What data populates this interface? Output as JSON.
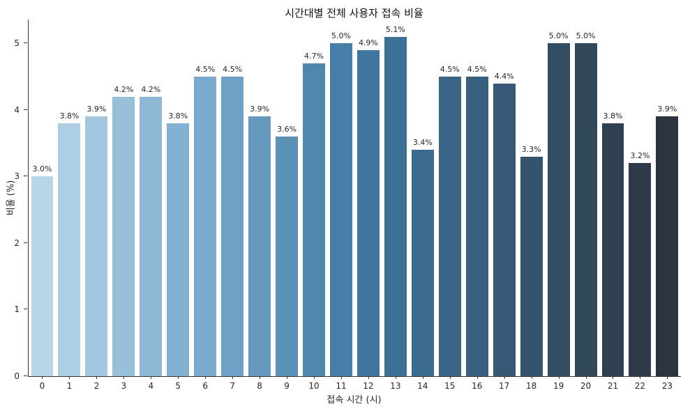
{
  "chart_data": {
    "type": "bar",
    "title": "시간대별 전체 사용자 접속 비율",
    "xlabel": "접속 시간 (시)",
    "ylabel": "비율 (%)",
    "categories": [
      "0",
      "1",
      "2",
      "3",
      "4",
      "5",
      "6",
      "7",
      "8",
      "9",
      "10",
      "11",
      "12",
      "13",
      "14",
      "15",
      "16",
      "17",
      "18",
      "19",
      "20",
      "21",
      "22",
      "23"
    ],
    "values": [
      3.0,
      3.8,
      3.9,
      4.2,
      4.2,
      3.8,
      4.5,
      4.5,
      3.9,
      3.6,
      4.7,
      5.0,
      4.9,
      5.1,
      3.4,
      4.5,
      4.5,
      4.4,
      3.3,
      5.0,
      5.0,
      3.8,
      3.2,
      3.9
    ],
    "value_labels": [
      "3.0%",
      "3.8%",
      "3.9%",
      "4.2%",
      "4.2%",
      "3.8%",
      "4.5%",
      "4.5%",
      "3.9%",
      "3.6%",
      "4.7%",
      "5.0%",
      "4.9%",
      "5.1%",
      "3.4%",
      "4.5%",
      "4.5%",
      "4.4%",
      "3.3%",
      "5.0%",
      "5.0%",
      "3.8%",
      "3.2%",
      "3.9%"
    ],
    "bar_colors": [
      "#b9d5e9",
      "#aecee4",
      "#a3c7e0",
      "#99c0db",
      "#8eb8d6",
      "#83b1d2",
      "#78aacd",
      "#6ea1c6",
      "#6599be",
      "#5b90b7",
      "#5187af",
      "#487fa8",
      "#3e76a0",
      "#3d7097",
      "#3b6a8f",
      "#3a6586",
      "#385f7d",
      "#375975",
      "#35536c",
      "#334d63",
      "#31475a",
      "#2f4051",
      "#2d3a48",
      "#2b343f"
    ],
    "ylim": [
      0,
      5.36
    ],
    "yticks": [
      0,
      1,
      2,
      3,
      4,
      5
    ],
    "grid": false,
    "legend": null,
    "axis_color": "#333333",
    "background": "#ffffff"
  }
}
